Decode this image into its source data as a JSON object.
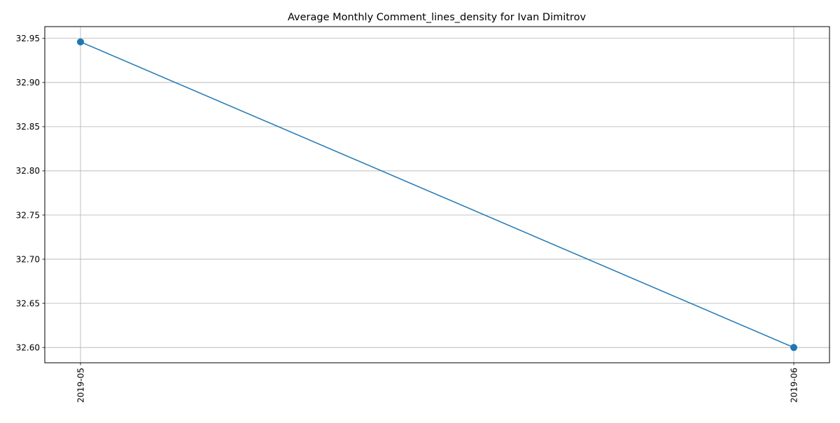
{
  "chart_data": {
    "type": "line",
    "title": "Average Monthly Comment_lines_density for Ivan Dimitrov",
    "xlabel": "",
    "ylabel": "",
    "x": [
      "2019-05",
      "2019-06"
    ],
    "series": [
      {
        "values": [
          32.946,
          32.6
        ],
        "color": "#1f77b4",
        "marker": "circle"
      }
    ],
    "ylim": [
      32.5827,
      32.9633
    ],
    "y_ticks": [
      32.6,
      32.65,
      32.7,
      32.75,
      32.8,
      32.85,
      32.9,
      32.95
    ],
    "y_tick_labels": [
      "32.60",
      "32.65",
      "32.70",
      "32.75",
      "32.80",
      "32.85",
      "32.90",
      "32.95"
    ],
    "x_tick_rotation": "vertical",
    "grid": true
  }
}
